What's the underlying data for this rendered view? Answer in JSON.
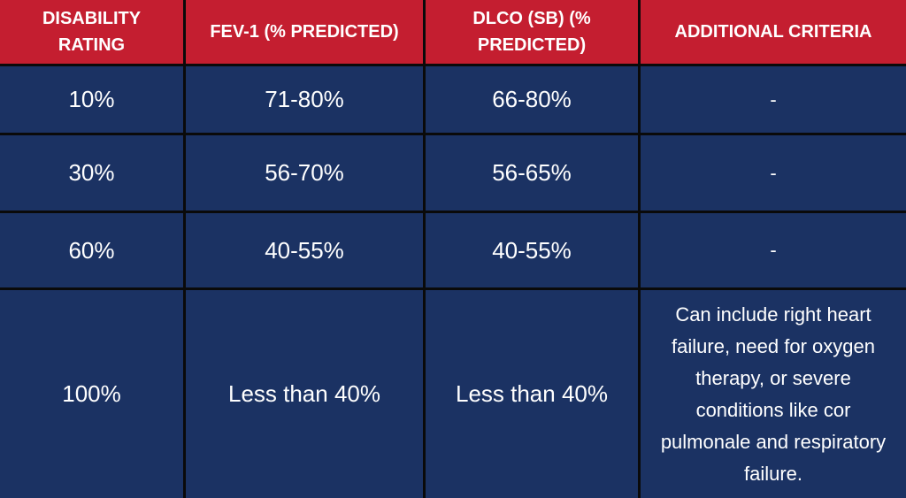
{
  "table": {
    "header": [
      "DISABILITY RATING",
      "FEV-1 (% PREDICTED)",
      "DLCO (SB) (% PREDICTED)",
      "ADDITIONAL CRITERIA"
    ],
    "rows": [
      [
        "10%",
        "71-80%",
        "66-80%",
        "-"
      ],
      [
        "30%",
        "56-70%",
        "56-65%",
        "-"
      ],
      [
        "60%",
        "40-55%",
        "40-55%",
        "-"
      ],
      [
        "100%",
        "Less than 40%",
        "Less than 40%",
        "Can include right heart failure, need for oxygen therapy, or severe conditions like cor pulmonale and respiratory failure."
      ]
    ]
  }
}
